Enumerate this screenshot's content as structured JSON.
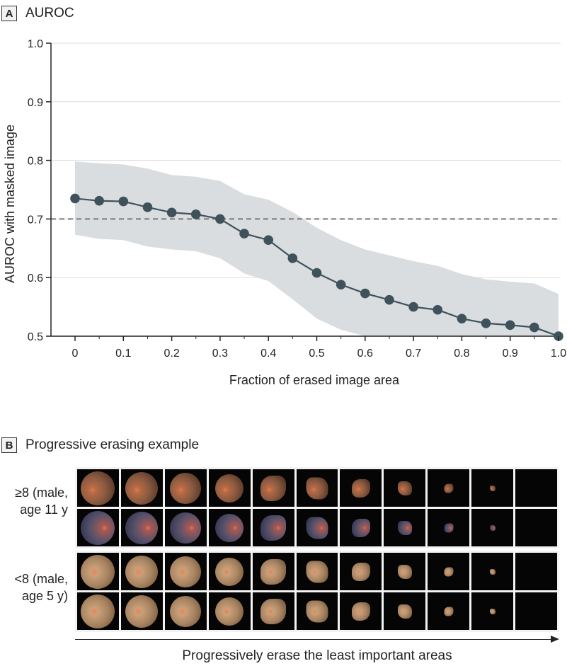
{
  "panel_a": {
    "letter": "A",
    "title": "AUROC"
  },
  "panel_b": {
    "letter": "B",
    "title": "Progressive erasing example"
  },
  "chart_data": {
    "type": "line",
    "title": "AUROC",
    "xlabel": "Fraction of erased image area",
    "ylabel": "AUROC with masked image",
    "xlim": [
      0,
      1.0
    ],
    "ylim": [
      0.5,
      1.0
    ],
    "x_ticks": [
      0,
      0.1,
      0.2,
      0.3,
      0.4,
      0.5,
      0.6,
      0.7,
      0.8,
      0.9,
      1.0
    ],
    "x_tick_labels": [
      "0",
      "0.1",
      "0.2",
      "0.3",
      "0.4",
      "0.5",
      "0.6",
      "0.7",
      "0.8",
      "0.9",
      "1.0"
    ],
    "y_ticks": [
      0.5,
      0.6,
      0.7,
      0.8,
      0.9,
      1.0
    ],
    "y_tick_labels": [
      "0.5",
      "0.6",
      "0.7",
      "0.8",
      "0.9",
      "1.0"
    ],
    "grid": "horizontal",
    "reference_line": {
      "y": 0.7,
      "style": "dashed",
      "color": "#777777"
    },
    "x": [
      0,
      0.05,
      0.1,
      0.15,
      0.2,
      0.25,
      0.3,
      0.35,
      0.4,
      0.45,
      0.5,
      0.55,
      0.6,
      0.65,
      0.7,
      0.75,
      0.8,
      0.85,
      0.9,
      0.95,
      1.0
    ],
    "values": [
      0.735,
      0.731,
      0.73,
      0.72,
      0.711,
      0.708,
      0.7,
      0.675,
      0.664,
      0.633,
      0.608,
      0.588,
      0.573,
      0.562,
      0.55,
      0.545,
      0.53,
      0.522,
      0.519,
      0.515,
      0.5
    ],
    "ci_upper": [
      0.798,
      0.795,
      0.793,
      0.786,
      0.775,
      0.772,
      0.765,
      0.742,
      0.733,
      0.712,
      0.685,
      0.664,
      0.648,
      0.638,
      0.628,
      0.62,
      0.606,
      0.597,
      0.593,
      0.59,
      0.572
    ],
    "ci_lower": [
      0.673,
      0.666,
      0.664,
      0.653,
      0.648,
      0.645,
      0.633,
      0.607,
      0.594,
      0.563,
      0.53,
      0.511,
      0.5,
      0.5,
      0.5,
      0.5,
      0.5,
      0.5,
      0.5,
      0.5,
      0.5
    ],
    "colors": {
      "line": "#3f525b",
      "marker": "#3f525b",
      "band": "#d9dde0",
      "grid": "#dddddd"
    }
  },
  "erasing": {
    "groups": [
      {
        "label_line1": "≥8 (male,",
        "label_line2": "age 11 y"
      },
      {
        "label_line1": "<8 (male,",
        "label_line2": "age 5 y)"
      }
    ],
    "columns": 11,
    "arrow_caption": "Progressively erase the least important areas"
  }
}
